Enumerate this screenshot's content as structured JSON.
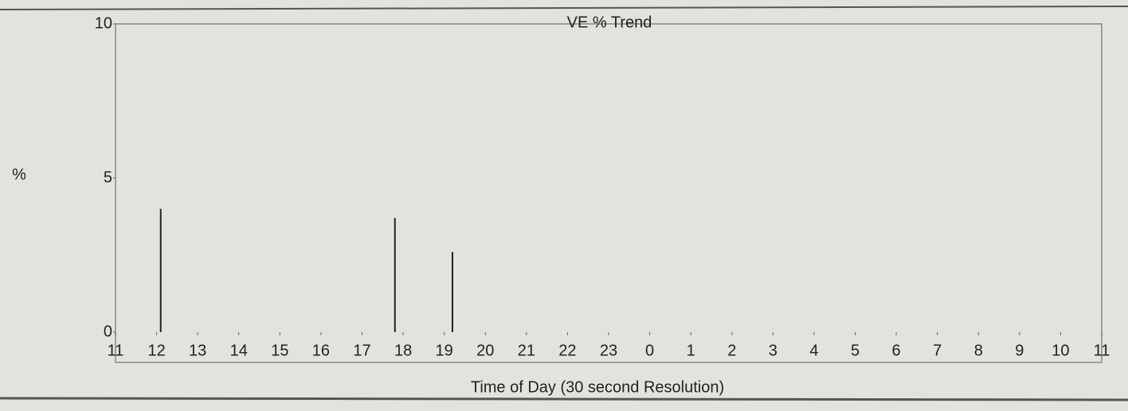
{
  "chart_data": {
    "type": "stem",
    "title": "VE % Trend",
    "y_label": "%",
    "x_label": "Time of Day (30 second Resolution)",
    "x": [
      12.1,
      17.8,
      19.2
    ],
    "values": [
      4.0,
      3.7,
      2.6
    ],
    "color": "#222222",
    "xlim": [
      11,
      35
    ],
    "xticks": [
      11,
      12,
      13,
      14,
      15,
      16,
      17,
      18,
      19,
      20,
      21,
      22,
      23,
      {
        "value": 24,
        "label": "0"
      },
      {
        "value": 25,
        "label": "1"
      },
      {
        "value": 26,
        "label": "2"
      },
      {
        "value": 27,
        "label": "3"
      },
      {
        "value": 28,
        "label": "4"
      },
      {
        "value": 29,
        "label": "5"
      },
      {
        "value": 30,
        "label": "6"
      },
      {
        "value": 31,
        "label": "7"
      },
      {
        "value": 32,
        "label": "8"
      },
      {
        "value": 33,
        "label": "9"
      },
      {
        "value": 34,
        "label": "10"
      },
      {
        "value": 35,
        "label": "11"
      }
    ],
    "ylim": [
      0,
      10
    ],
    "yticks": [
      0,
      5,
      10
    ]
  }
}
